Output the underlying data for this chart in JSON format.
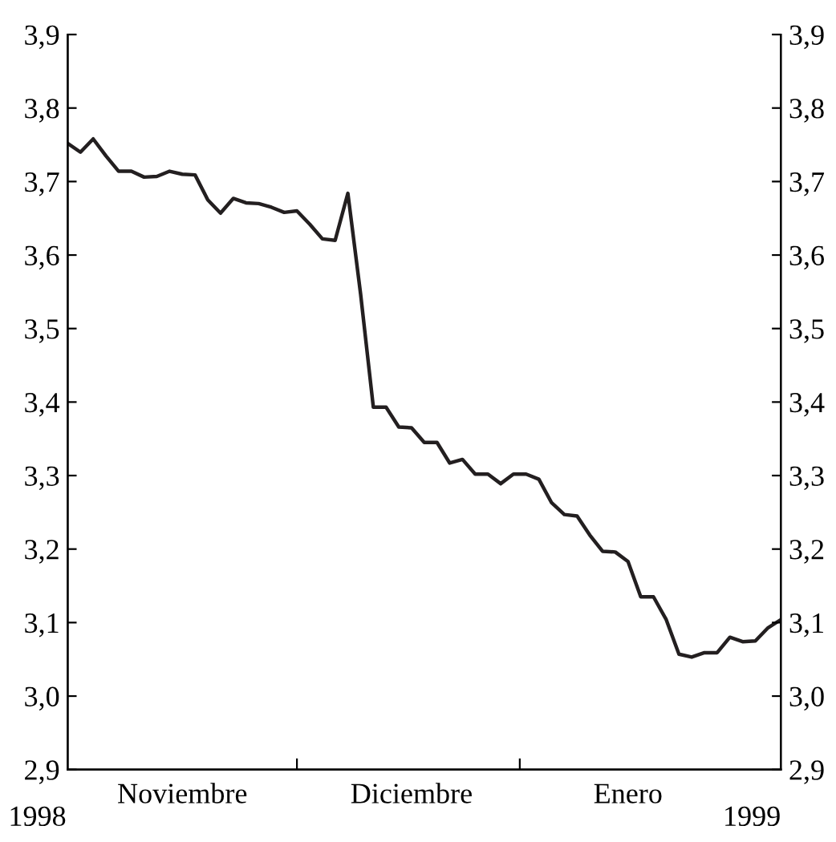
{
  "chart_data": {
    "type": "line",
    "categories": [
      null,
      null,
      null,
      null,
      null,
      null,
      null,
      null,
      null,
      "Noviembre",
      null,
      null,
      null,
      null,
      null,
      null,
      null,
      null,
      null,
      null,
      null,
      null,
      null,
      null,
      null,
      null,
      null,
      "Diciembre",
      null,
      null,
      null,
      null,
      null,
      null,
      null,
      null,
      null,
      null,
      null,
      null,
      null,
      null,
      null,
      null,
      "Enero",
      null,
      null,
      null,
      null,
      null,
      null,
      null,
      null,
      null,
      null,
      null,
      null
    ],
    "series": [
      {
        "color": "#231f20",
        "values": [
          3.752,
          3.74,
          3.758,
          3.735,
          3.714,
          3.714,
          3.706,
          3.707,
          3.714,
          3.71,
          3.709,
          3.675,
          3.657,
          3.677,
          3.671,
          3.67,
          3.665,
          3.658,
          3.66,
          3.642,
          3.622,
          3.62,
          3.684,
          3.547,
          3.393,
          3.393,
          3.366,
          3.365,
          3.345,
          3.345,
          3.317,
          3.322,
          3.302,
          3.302,
          3.289,
          3.302,
          3.302,
          3.295,
          3.263,
          3.247,
          3.245,
          3.219,
          3.197,
          3.196,
          3.183,
          3.135,
          3.135,
          3.104,
          3.057,
          3.053,
          3.059,
          3.059,
          3.08,
          3.074,
          3.075,
          3.093,
          3.104
        ]
      }
    ],
    "ylim": [
      2.9,
      3.9
    ],
    "yticks": [
      {
        "value": 2.9,
        "label": "2,9"
      },
      {
        "value": 3.0,
        "label": "3,0"
      },
      {
        "value": 3.1,
        "label": "3,1"
      },
      {
        "value": 3.2,
        "label": "3,2"
      },
      {
        "value": 3.3,
        "label": "3,3"
      },
      {
        "value": 3.4,
        "label": "3,4"
      },
      {
        "value": 3.5,
        "label": "3,5"
      },
      {
        "value": 3.6,
        "label": "3,6"
      },
      {
        "value": 3.7,
        "label": "3,7"
      },
      {
        "value": 3.8,
        "label": "3,8"
      },
      {
        "value": 3.9,
        "label": "3,9"
      }
    ],
    "y2lim": [
      2.9,
      3.9
    ],
    "y2ticks": [
      {
        "value": 2.9,
        "label": "2,9"
      },
      {
        "value": 3.0,
        "label": "3,0"
      },
      {
        "value": 3.1,
        "label": "3,1"
      },
      {
        "value": 3.2,
        "label": "3,2"
      },
      {
        "value": 3.3,
        "label": "3,3"
      },
      {
        "value": 3.4,
        "label": "3,4"
      },
      {
        "value": 3.5,
        "label": "3,5"
      },
      {
        "value": 3.6,
        "label": "3,6"
      },
      {
        "value": 3.7,
        "label": "3,7"
      },
      {
        "value": 3.8,
        "label": "3,8"
      },
      {
        "value": 3.9,
        "label": "3,9"
      }
    ],
    "annotations": [
      "1998",
      "1999"
    ],
    "grid": false,
    "legend": false,
    "marker": "none",
    "line_style": "solid"
  }
}
